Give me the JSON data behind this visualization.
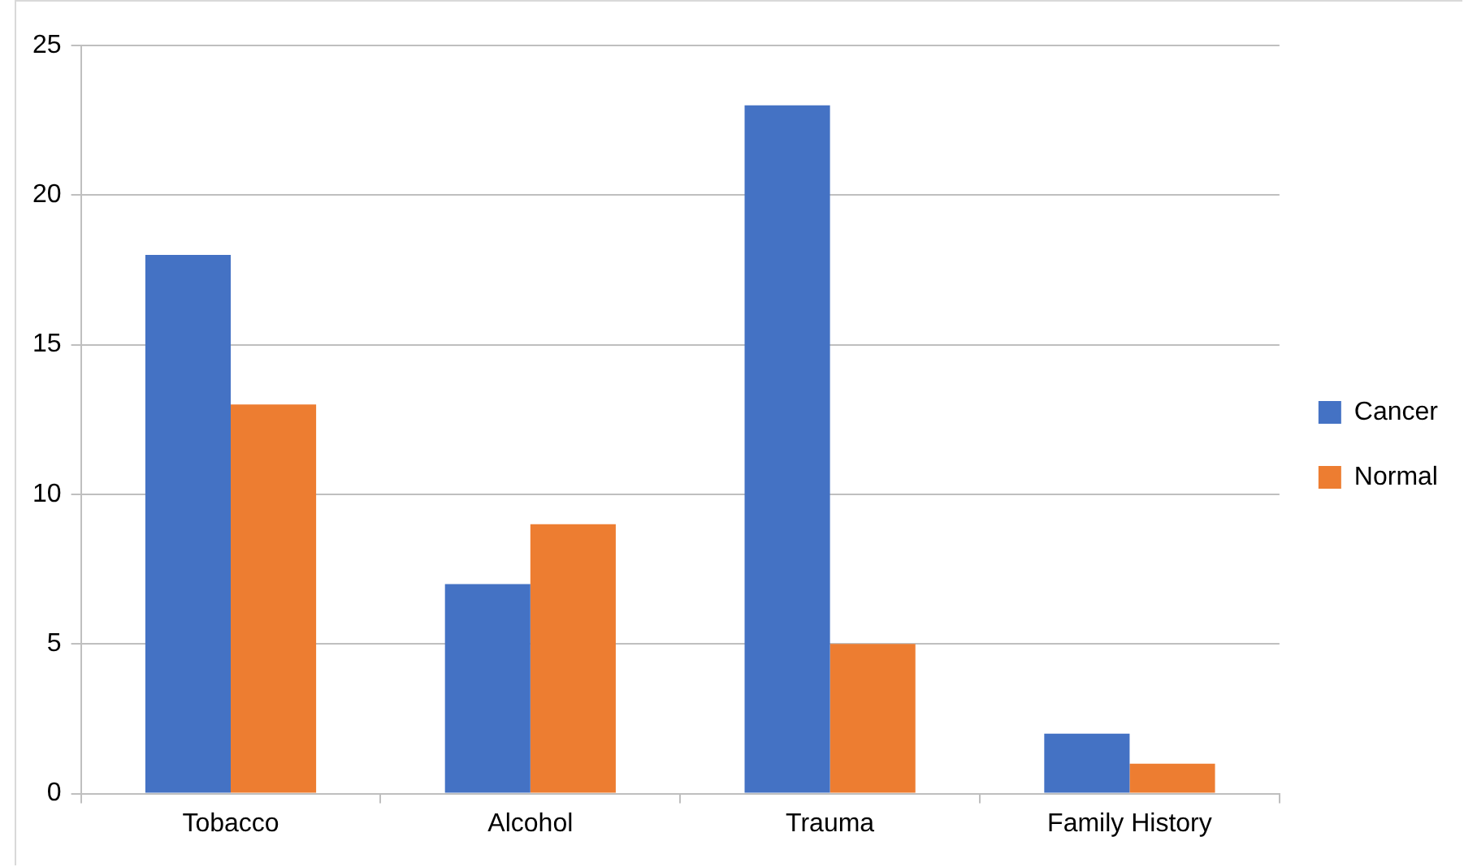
{
  "chart_data": {
    "type": "bar",
    "categories": [
      "Tobacco",
      "Alcohol",
      "Trauma",
      "Family History"
    ],
    "series": [
      {
        "name": "Cancer",
        "color": "#4472c4",
        "values": [
          18,
          7,
          23,
          2
        ]
      },
      {
        "name": "Normal",
        "color": "#ed7d31",
        "values": [
          13,
          9,
          5,
          1
        ]
      }
    ],
    "ylim": [
      0,
      25
    ],
    "yticks": [
      0,
      5,
      10,
      15,
      20,
      25
    ],
    "grid": "y",
    "legend": "right"
  }
}
